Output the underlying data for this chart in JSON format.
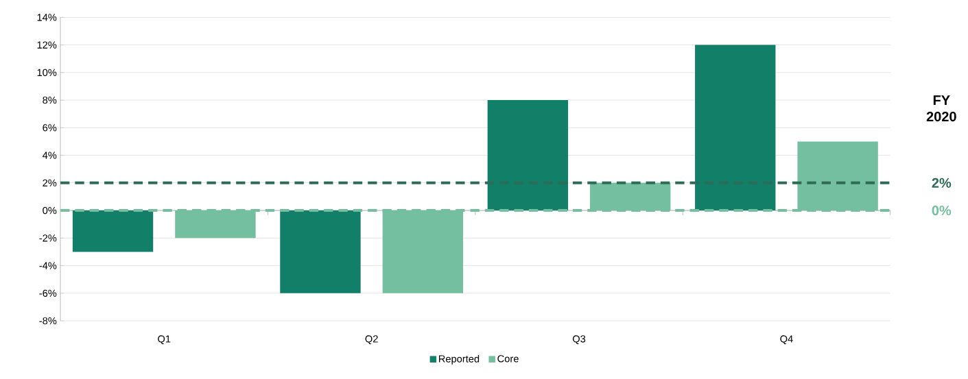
{
  "chart_data": {
    "type": "bar",
    "categories": [
      "Q1",
      "Q2",
      "Q3",
      "Q4"
    ],
    "series": [
      {
        "name": "Reported",
        "color": "#127f69",
        "values": [
          -3,
          -6,
          8,
          12
        ]
      },
      {
        "name": "Core",
        "color": "#73bf9f",
        "values": [
          -2,
          -6,
          2,
          5
        ]
      }
    ],
    "ylim": [
      -8,
      14
    ],
    "yticks": [
      {
        "value": -8,
        "label": "-8%"
      },
      {
        "value": -6,
        "label": "-6%"
      },
      {
        "value": -4,
        "label": "-4%"
      },
      {
        "value": -2,
        "label": "-2%"
      },
      {
        "value": 0,
        "label": "0%"
      },
      {
        "value": 2,
        "label": "2%"
      },
      {
        "value": 4,
        "label": "4%"
      },
      {
        "value": 6,
        "label": "6%"
      },
      {
        "value": 8,
        "label": "8%"
      },
      {
        "value": 10,
        "label": "10%"
      },
      {
        "value": 12,
        "label": "12%"
      },
      {
        "value": 14,
        "label": "14%"
      }
    ],
    "grid": "y",
    "legend": "bottom",
    "ref_lines": [
      {
        "axis": "y",
        "value": 2,
        "label": "2%",
        "color": "#2e6b58",
        "line_style": "dashed"
      },
      {
        "axis": "y",
        "value": 0,
        "label": "0%",
        "color": "#73bf9f",
        "line_style": "dashed"
      }
    ],
    "annotations": [
      "FY 2020"
    ]
  }
}
